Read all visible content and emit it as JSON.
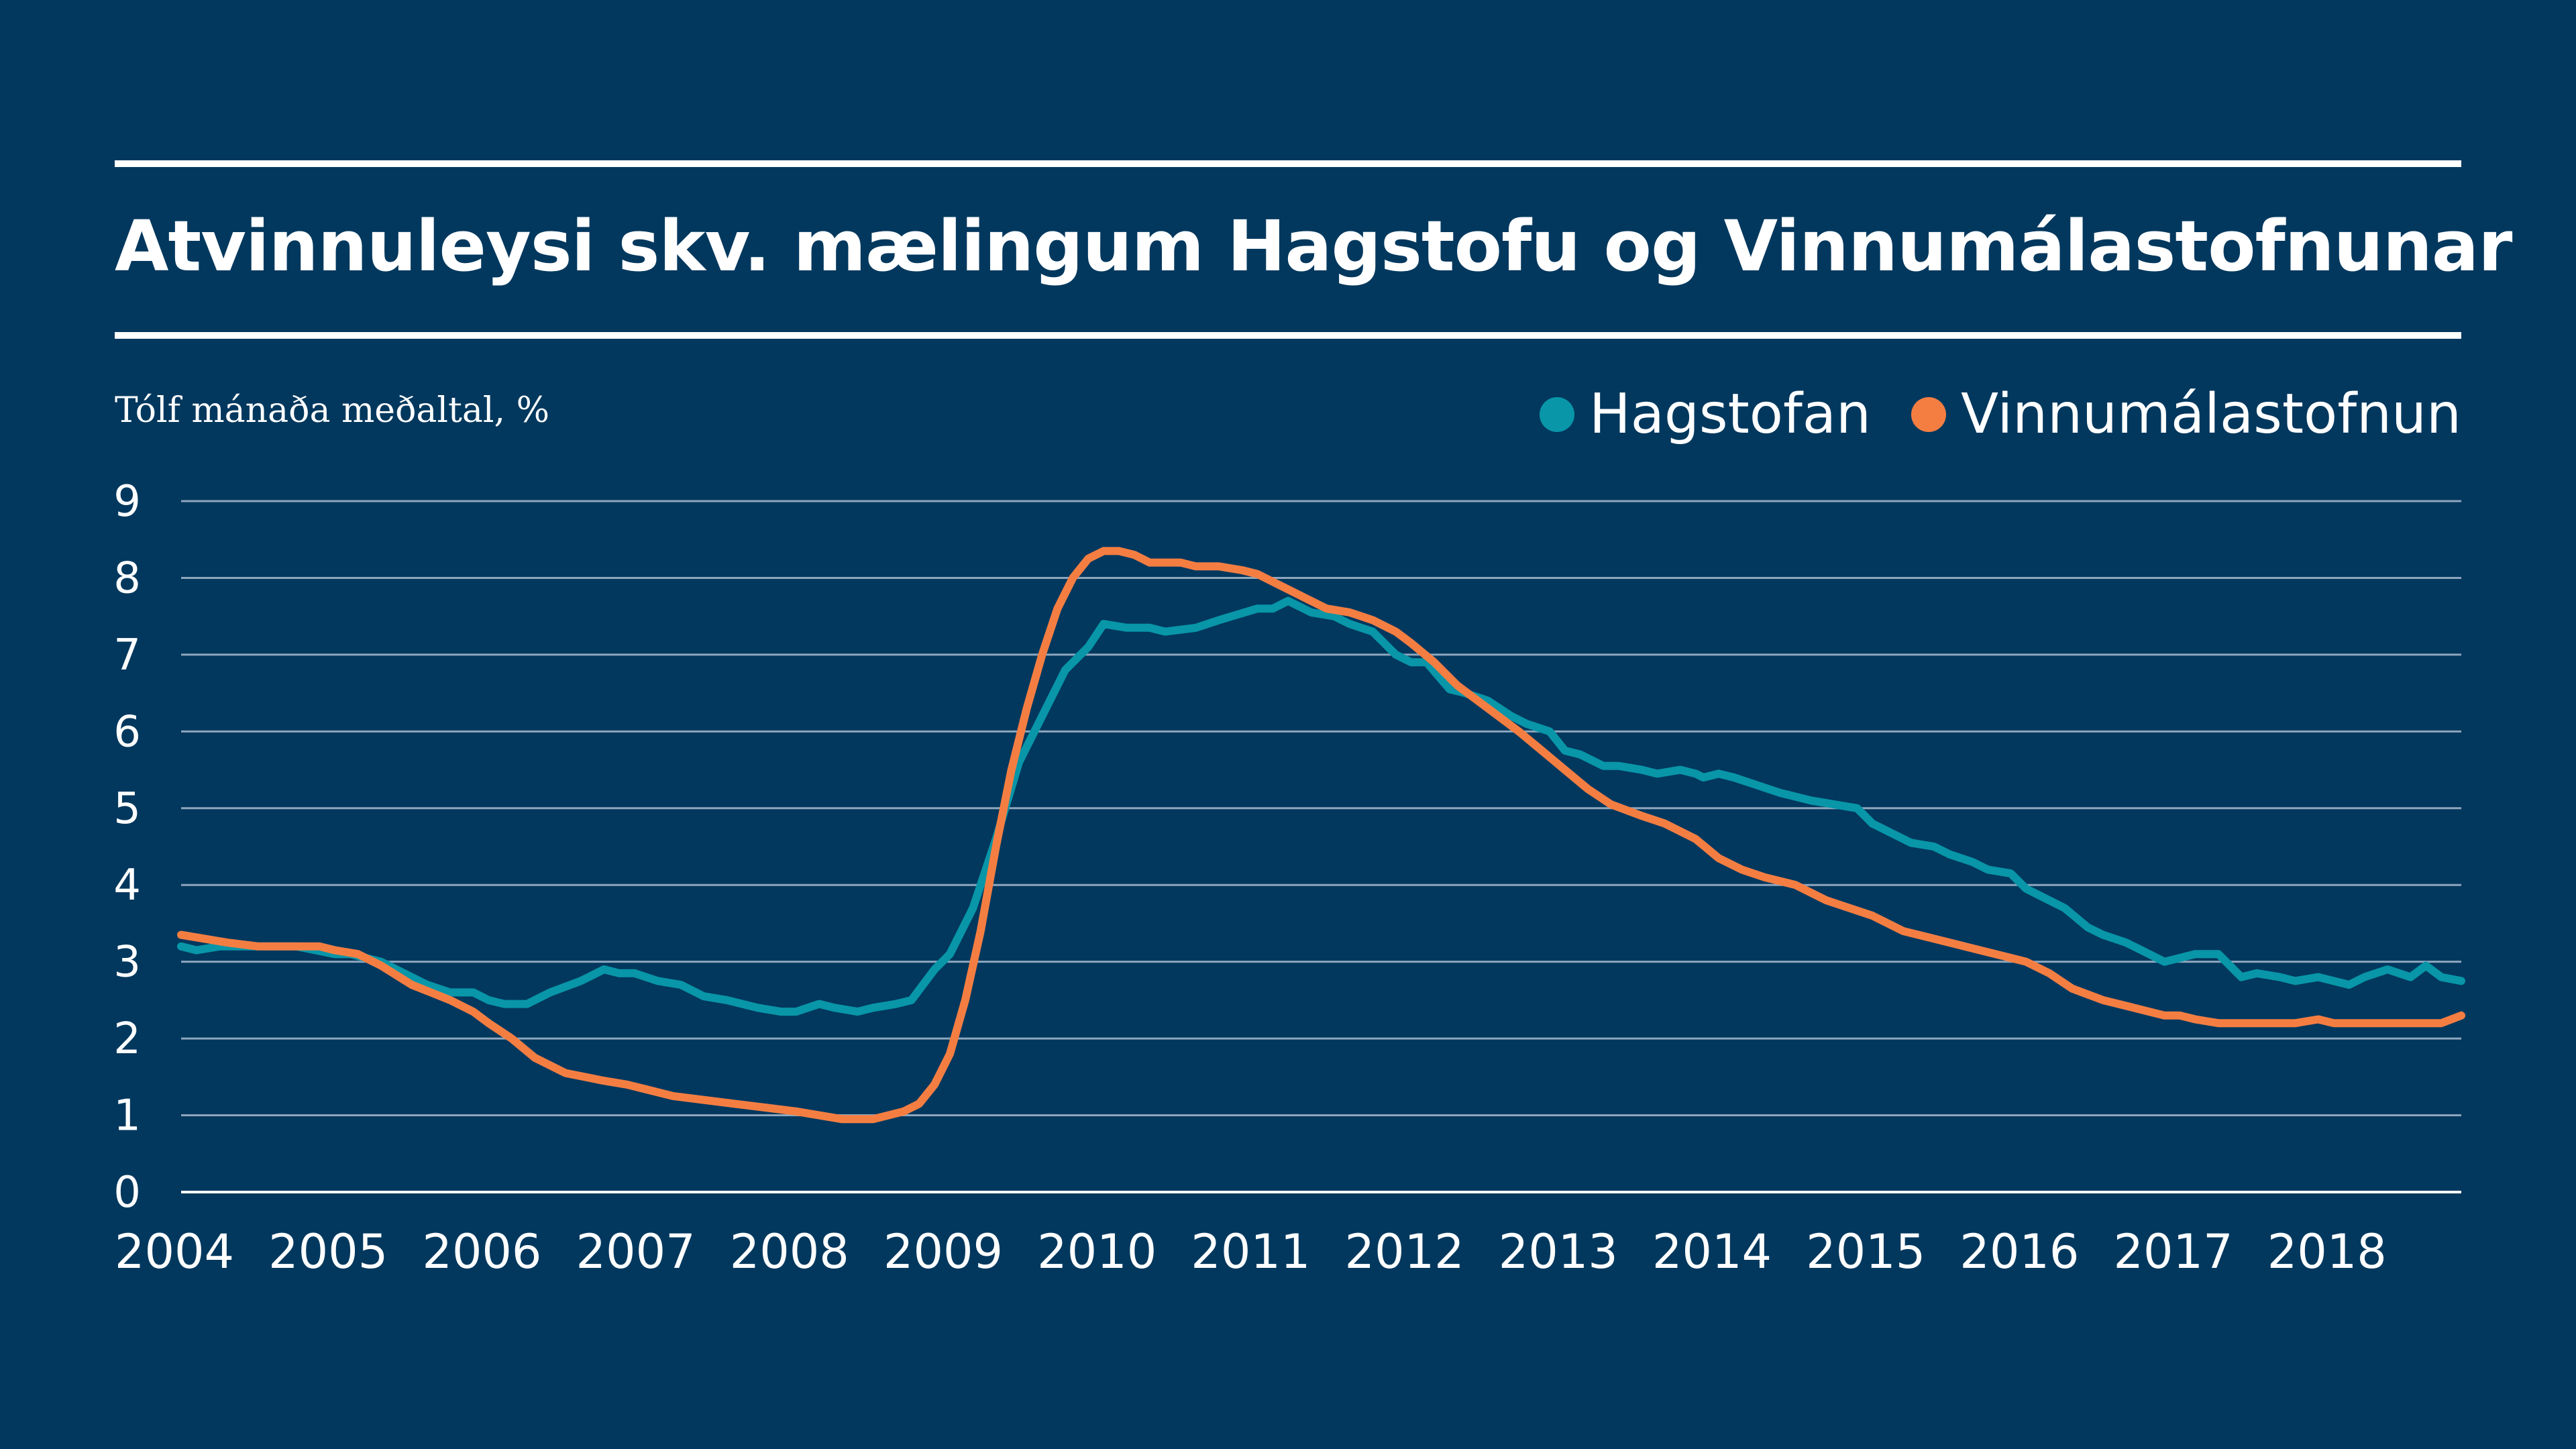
{
  "chart_data": {
    "type": "line",
    "title": "Atvinnuleysi skv. mælingum Hagstofu og Vinnumálastofnunar",
    "subtitle": "Tólf mánaða meðaltal, %",
    "xlabel": "",
    "ylabel": "",
    "ylim": [
      0,
      9
    ],
    "y_ticks": [
      "0",
      "1",
      "2",
      "3",
      "4",
      "5",
      "6",
      "7",
      "8",
      "9"
    ],
    "x_ticks": [
      "2004",
      "2005",
      "2006",
      "2007",
      "2008",
      "2009",
      "2010",
      "2011",
      "2012",
      "2013",
      "2014",
      "2015",
      "2016",
      "2017",
      "2018"
    ],
    "xlim": [
      2004.0,
      2018.83
    ],
    "grid": true,
    "legend_position": "top-right",
    "series": [
      {
        "name": "Hagstofan",
        "color": "#0896a8",
        "x": [
          2004.0,
          2004.1,
          2004.25,
          2004.5,
          2004.75,
          2005.0,
          2005.1,
          2005.3,
          2005.5,
          2005.6,
          2005.75,
          2005.9,
          2006.0,
          2006.1,
          2006.25,
          2006.4,
          2006.6,
          2006.75,
          2006.85,
          2006.95,
          2007.1,
          2007.25,
          2007.4,
          2007.55,
          2007.75,
          2007.9,
          2008.0,
          2008.15,
          2008.25,
          2008.4,
          2008.5,
          2008.65,
          2008.75,
          2008.9,
          2009.0,
          2009.15,
          2009.3,
          2009.45,
          2009.6,
          2009.75,
          2009.9,
          2010.0,
          2010.15,
          2010.3,
          2010.4,
          2010.6,
          2010.75,
          2011.0,
          2011.1,
          2011.2,
          2011.35,
          2011.5,
          2011.6,
          2011.75,
          2011.9,
          2012.0,
          2012.1,
          2012.25,
          2012.35,
          2012.5,
          2012.65,
          2012.75,
          2012.9,
          2013.0,
          2013.1,
          2013.25,
          2013.35,
          2013.5,
          2013.6,
          2013.75,
          2013.85,
          2013.9,
          2014.0,
          2014.1,
          2014.25,
          2014.4,
          2014.5,
          2014.6,
          2014.75,
          2014.9,
          2015.0,
          2015.1,
          2015.25,
          2015.4,
          2015.5,
          2015.65,
          2015.75,
          2015.9,
          2016.0,
          2016.1,
          2016.25,
          2016.4,
          2016.5,
          2016.65,
          2016.75,
          2016.9,
          2017.0,
          2017.1,
          2017.25,
          2017.4,
          2017.5,
          2017.65,
          2017.75,
          2017.9,
          2018.0,
          2018.1,
          2018.2,
          2018.35,
          2018.5,
          2018.6,
          2018.7,
          2018.83
        ],
        "values": [
          3.2,
          3.15,
          3.2,
          3.2,
          3.2,
          3.1,
          3.1,
          3.0,
          2.8,
          2.7,
          2.6,
          2.6,
          2.5,
          2.45,
          2.45,
          2.6,
          2.75,
          2.9,
          2.85,
          2.85,
          2.75,
          2.7,
          2.55,
          2.5,
          2.4,
          2.35,
          2.35,
          2.45,
          2.4,
          2.35,
          2.4,
          2.45,
          2.5,
          2.9,
          3.1,
          3.7,
          4.6,
          5.6,
          6.2,
          6.8,
          7.1,
          7.4,
          7.35,
          7.35,
          7.3,
          7.35,
          7.45,
          7.6,
          7.6,
          7.7,
          7.55,
          7.5,
          7.4,
          7.3,
          7.0,
          6.9,
          6.9,
          6.55,
          6.5,
          6.4,
          6.2,
          6.1,
          6.0,
          5.75,
          5.7,
          5.55,
          5.55,
          5.5,
          5.45,
          5.5,
          5.45,
          5.4,
          5.45,
          5.4,
          5.3,
          5.2,
          5.15,
          5.1,
          5.05,
          5.0,
          4.8,
          4.7,
          4.55,
          4.5,
          4.4,
          4.3,
          4.2,
          4.15,
          3.95,
          3.85,
          3.7,
          3.45,
          3.35,
          3.25,
          3.15,
          3.0,
          3.05,
          3.1,
          3.1,
          2.8,
          2.85,
          2.8,
          2.75,
          2.8,
          2.75,
          2.7,
          2.8,
          2.9,
          2.8,
          2.95,
          2.8,
          2.75
        ]
      },
      {
        "name": "Vinnumálastofnun",
        "color": "#f47e42",
        "x": [
          2004.0,
          2004.15,
          2004.3,
          2004.5,
          2004.75,
          2004.9,
          2005.0,
          2005.15,
          2005.3,
          2005.5,
          2005.75,
          2005.9,
          2006.0,
          2006.15,
          2006.3,
          2006.5,
          2006.75,
          2006.9,
          2007.0,
          2007.2,
          2007.4,
          2007.6,
          2007.8,
          2008.0,
          2008.15,
          2008.3,
          2008.5,
          2008.6,
          2008.7,
          2008.8,
          2008.9,
          2009.0,
          2009.1,
          2009.2,
          2009.3,
          2009.4,
          2009.5,
          2009.6,
          2009.7,
          2009.8,
          2009.9,
          2010.0,
          2010.1,
          2010.2,
          2010.3,
          2010.4,
          2010.5,
          2010.6,
          2010.75,
          2010.9,
          2011.0,
          2011.1,
          2011.2,
          2011.3,
          2011.45,
          2011.6,
          2011.75,
          2011.9,
          2012.0,
          2012.15,
          2012.3,
          2012.5,
          2012.7,
          2012.85,
          2013.0,
          2013.15,
          2013.3,
          2013.5,
          2013.65,
          2013.85,
          2014.0,
          2014.15,
          2014.3,
          2014.5,
          2014.7,
          2014.85,
          2015.0,
          2015.2,
          2015.4,
          2015.6,
          2015.8,
          2016.0,
          2016.15,
          2016.3,
          2016.5,
          2016.7,
          2016.9,
          2017.0,
          2017.1,
          2017.25,
          2017.5,
          2017.75,
          2017.9,
          2018.0,
          2018.25,
          2018.5,
          2018.7,
          2018.83
        ],
        "values": [
          3.35,
          3.3,
          3.25,
          3.2,
          3.2,
          3.2,
          3.15,
          3.1,
          2.95,
          2.7,
          2.5,
          2.35,
          2.2,
          2.0,
          1.75,
          1.55,
          1.45,
          1.4,
          1.35,
          1.25,
          1.2,
          1.15,
          1.1,
          1.05,
          1.0,
          0.95,
          0.95,
          1.0,
          1.05,
          1.15,
          1.4,
          1.8,
          2.5,
          3.4,
          4.5,
          5.5,
          6.3,
          7.0,
          7.6,
          8.0,
          8.25,
          8.35,
          8.35,
          8.3,
          8.2,
          8.2,
          8.2,
          8.15,
          8.15,
          8.1,
          8.05,
          7.95,
          7.85,
          7.75,
          7.6,
          7.55,
          7.45,
          7.3,
          7.15,
          6.9,
          6.6,
          6.3,
          6.0,
          5.75,
          5.5,
          5.25,
          5.05,
          4.9,
          4.8,
          4.6,
          4.35,
          4.2,
          4.1,
          4.0,
          3.8,
          3.7,
          3.6,
          3.4,
          3.3,
          3.2,
          3.1,
          3.0,
          2.85,
          2.65,
          2.5,
          2.4,
          2.3,
          2.3,
          2.25,
          2.2,
          2.2,
          2.2,
          2.25,
          2.2,
          2.2,
          2.2,
          2.2,
          2.3
        ]
      }
    ]
  }
}
